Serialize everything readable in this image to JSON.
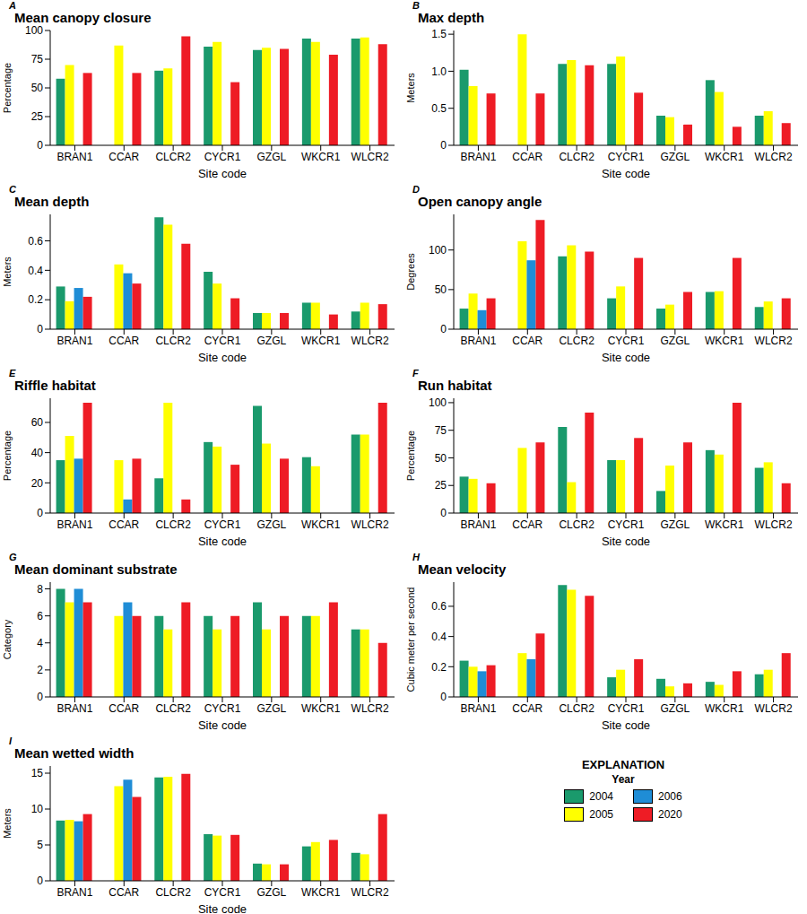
{
  "explanation": {
    "title": "EXPLANATION",
    "subtitle": "Year"
  },
  "chart_data": [
    {
      "type": "bar",
      "annotation": "A",
      "title": "Mean canopy closure",
      "x_label": "Site code",
      "y_label": "Percentage",
      "grid": false,
      "categories": [
        "BRAN1",
        "CCAR",
        "CLCR2",
        "CYCR1",
        "GZGL",
        "WKCR1",
        "WLCR2"
      ],
      "ylim": [
        0,
        100
      ],
      "yticks": [
        0,
        25,
        50,
        75,
        100
      ],
      "series": [
        {
          "name": "2004",
          "color": "#1a9a6c",
          "values": [
            58,
            null,
            65,
            86,
            83,
            93,
            93
          ]
        },
        {
          "name": "2005",
          "color": "#ffff00",
          "values": [
            70,
            87,
            67,
            90,
            85,
            90,
            94
          ]
        },
        {
          "name": "2006",
          "color": "#1f8dd6",
          "values": [
            null,
            null,
            null,
            null,
            null,
            null,
            null
          ]
        },
        {
          "name": "2020",
          "color": "#ee1c25",
          "values": [
            63,
            63,
            95,
            55,
            84,
            79,
            88
          ]
        }
      ]
    },
    {
      "type": "bar",
      "annotation": "B",
      "title": "Max depth",
      "x_label": "Site code",
      "y_label": "Meters",
      "grid": false,
      "categories": [
        "BRAN1",
        "CCAR",
        "CLCR2",
        "CYCR1",
        "GZGL",
        "WKCR1",
        "WLCR2"
      ],
      "ylim": [
        0,
        1.55
      ],
      "yticks": [
        0,
        0.5,
        {
          "value": 1,
          "label": "1.0"
        },
        1.5
      ],
      "series": [
        {
          "name": "2004",
          "color": "#1a9a6c",
          "values": [
            1.02,
            null,
            1.1,
            1.1,
            0.4,
            0.88,
            0.4
          ]
        },
        {
          "name": "2005",
          "color": "#ffff00",
          "values": [
            0.8,
            1.5,
            1.15,
            1.2,
            0.38,
            0.72,
            0.46
          ]
        },
        {
          "name": "2006",
          "color": "#1f8dd6",
          "values": [
            null,
            null,
            null,
            null,
            null,
            null,
            null
          ]
        },
        {
          "name": "2020",
          "color": "#ee1c25",
          "values": [
            0.7,
            0.7,
            1.08,
            0.71,
            0.28,
            0.25,
            0.3
          ]
        }
      ]
    },
    {
      "type": "bar",
      "annotation": "C",
      "title": "Mean depth",
      "x_label": "Site code",
      "y_label": "Meters",
      "grid": false,
      "categories": [
        "BRAN1",
        "CCAR",
        "CLCR2",
        "CYCR1",
        "GZGL",
        "WKCR1",
        "WLCR2"
      ],
      "ylim": [
        0,
        0.78
      ],
      "yticks": [
        0,
        0.2,
        0.4,
        0.6
      ],
      "series": [
        {
          "name": "2004",
          "color": "#1a9a6c",
          "values": [
            0.29,
            null,
            0.76,
            0.39,
            0.11,
            0.18,
            0.12
          ]
        },
        {
          "name": "2005",
          "color": "#ffff00",
          "values": [
            0.19,
            0.44,
            0.71,
            0.31,
            0.11,
            0.18,
            0.18
          ]
        },
        {
          "name": "2006",
          "color": "#1f8dd6",
          "values": [
            0.28,
            0.38,
            null,
            null,
            null,
            null,
            null
          ]
        },
        {
          "name": "2020",
          "color": "#ee1c25",
          "values": [
            0.22,
            0.31,
            0.58,
            0.21,
            0.11,
            0.1,
            0.17
          ]
        }
      ]
    },
    {
      "type": "bar",
      "annotation": "D",
      "title": "Open canopy angle",
      "x_label": "Site code",
      "y_label": "Degrees",
      "grid": false,
      "categories": [
        "BRAN1",
        "CCAR",
        "CLCR2",
        "CYCR1",
        "GZGL",
        "WKCR1",
        "WLCR2"
      ],
      "ylim": [
        0,
        145
      ],
      "yticks": [
        0,
        50,
        100
      ],
      "series": [
        {
          "name": "2004",
          "color": "#1a9a6c",
          "values": [
            26,
            null,
            92,
            39,
            26,
            47,
            28
          ]
        },
        {
          "name": "2005",
          "color": "#ffff00",
          "values": [
            45,
            111,
            106,
            54,
            31,
            48,
            35
          ]
        },
        {
          "name": "2006",
          "color": "#1f8dd6",
          "values": [
            24,
            87,
            null,
            null,
            null,
            null,
            null
          ]
        },
        {
          "name": "2020",
          "color": "#ee1c25",
          "values": [
            39,
            138,
            98,
            90,
            47,
            90,
            39
          ]
        }
      ]
    },
    {
      "type": "bar",
      "annotation": "E",
      "title": "Riffle habitat",
      "x_label": "Site code",
      "y_label": "Percentage",
      "grid": false,
      "categories": [
        "BRAN1",
        "CCAR",
        "CLCR2",
        "CYCR1",
        "GZGL",
        "WKCR1",
        "WLCR2"
      ],
      "ylim": [
        0,
        76
      ],
      "yticks": [
        0,
        20,
        40,
        60
      ],
      "series": [
        {
          "name": "2004",
          "color": "#1a9a6c",
          "values": [
            35,
            null,
            23,
            47,
            71,
            37,
            52
          ]
        },
        {
          "name": "2005",
          "color": "#ffff00",
          "values": [
            51,
            35,
            73,
            44,
            46,
            31,
            52
          ]
        },
        {
          "name": "2006",
          "color": "#1f8dd6",
          "values": [
            36,
            9,
            null,
            null,
            null,
            null,
            null
          ]
        },
        {
          "name": "2020",
          "color": "#ee1c25",
          "values": [
            73,
            36,
            9,
            32,
            36,
            0,
            73
          ]
        }
      ]
    },
    {
      "type": "bar",
      "annotation": "F",
      "title": "Run habitat",
      "x_label": "Site code",
      "y_label": "Percentage",
      "grid": false,
      "categories": [
        "BRAN1",
        "CCAR",
        "CLCR2",
        "CYCR1",
        "GZGL",
        "WKCR1",
        "WLCR2"
      ],
      "ylim": [
        0,
        104
      ],
      "yticks": [
        0,
        25,
        50,
        75,
        100
      ],
      "series": [
        {
          "name": "2004",
          "color": "#1a9a6c",
          "values": [
            33,
            null,
            78,
            48,
            20,
            57,
            41
          ]
        },
        {
          "name": "2005",
          "color": "#ffff00",
          "values": [
            31,
            59,
            28,
            48,
            43,
            53,
            46
          ]
        },
        {
          "name": "2006",
          "color": "#1f8dd6",
          "values": [
            null,
            null,
            null,
            null,
            null,
            null,
            null
          ]
        },
        {
          "name": "2020",
          "color": "#ee1c25",
          "values": [
            27,
            64,
            91,
            68,
            64,
            100,
            27
          ]
        }
      ]
    },
    {
      "type": "bar",
      "annotation": "G",
      "title": "Mean dominant substrate",
      "x_label": "Site code",
      "y_label": "Category",
      "grid": false,
      "categories": [
        "BRAN1",
        "CCAR",
        "CLCR2",
        "CYCR1",
        "GZGL",
        "WKCR1",
        "WLCR2"
      ],
      "ylim": [
        0,
        8.5
      ],
      "yticks": [
        0,
        2,
        4,
        6,
        8
      ],
      "series": [
        {
          "name": "2004",
          "color": "#1a9a6c",
          "values": [
            8,
            null,
            6,
            6,
            7,
            6,
            5
          ]
        },
        {
          "name": "2005",
          "color": "#ffff00",
          "values": [
            7,
            6,
            5,
            5,
            5,
            6,
            5
          ]
        },
        {
          "name": "2006",
          "color": "#1f8dd6",
          "values": [
            8,
            7,
            null,
            null,
            null,
            null,
            null
          ]
        },
        {
          "name": "2020",
          "color": "#ee1c25",
          "values": [
            7,
            6,
            7,
            6,
            6,
            7,
            4
          ]
        }
      ]
    },
    {
      "type": "bar",
      "annotation": "H",
      "title": "Mean velocity",
      "x_label": "Site code",
      "y_label": "Cubic meter per second",
      "grid": false,
      "categories": [
        "BRAN1",
        "CCAR",
        "CLCR2",
        "CYCR1",
        "GZGL",
        "WKCR1",
        "WLCR2"
      ],
      "ylim": [
        0,
        0.76
      ],
      "yticks": [
        0,
        0.2,
        0.4,
        0.6
      ],
      "series": [
        {
          "name": "2004",
          "color": "#1a9a6c",
          "values": [
            0.24,
            null,
            0.74,
            0.13,
            0.12,
            0.1,
            0.15
          ]
        },
        {
          "name": "2005",
          "color": "#ffff00",
          "values": [
            0.2,
            0.29,
            0.71,
            0.18,
            0.07,
            0.08,
            0.18
          ]
        },
        {
          "name": "2006",
          "color": "#1f8dd6",
          "values": [
            0.17,
            0.25,
            null,
            null,
            null,
            null,
            null
          ]
        },
        {
          "name": "2020",
          "color": "#ee1c25",
          "values": [
            0.21,
            0.42,
            0.67,
            0.25,
            0.09,
            0.17,
            0.29
          ]
        }
      ]
    },
    {
      "type": "bar",
      "annotation": "I",
      "title": "Mean wetted width",
      "x_label": "Site code",
      "y_label": "Meters",
      "grid": false,
      "categories": [
        "BRAN1",
        "CCAR",
        "CLCR2",
        "CYCR1",
        "GZGL",
        "WKCR1",
        "WLCR2"
      ],
      "ylim": [
        0,
        16
      ],
      "yticks": [
        0,
        5,
        10,
        15
      ],
      "series": [
        {
          "name": "2004",
          "color": "#1a9a6c",
          "values": [
            8.4,
            null,
            14.4,
            6.5,
            2.4,
            4.8,
            3.9
          ]
        },
        {
          "name": "2005",
          "color": "#ffff00",
          "values": [
            8.5,
            13.2,
            14.5,
            6.3,
            2.3,
            5.4,
            3.7
          ]
        },
        {
          "name": "2006",
          "color": "#1f8dd6",
          "values": [
            8.3,
            14.1,
            null,
            null,
            null,
            null,
            null
          ]
        },
        {
          "name": "2020",
          "color": "#ee1c25",
          "values": [
            9.3,
            11.7,
            14.9,
            6.4,
            2.3,
            5.7,
            9.3
          ]
        }
      ]
    }
  ]
}
